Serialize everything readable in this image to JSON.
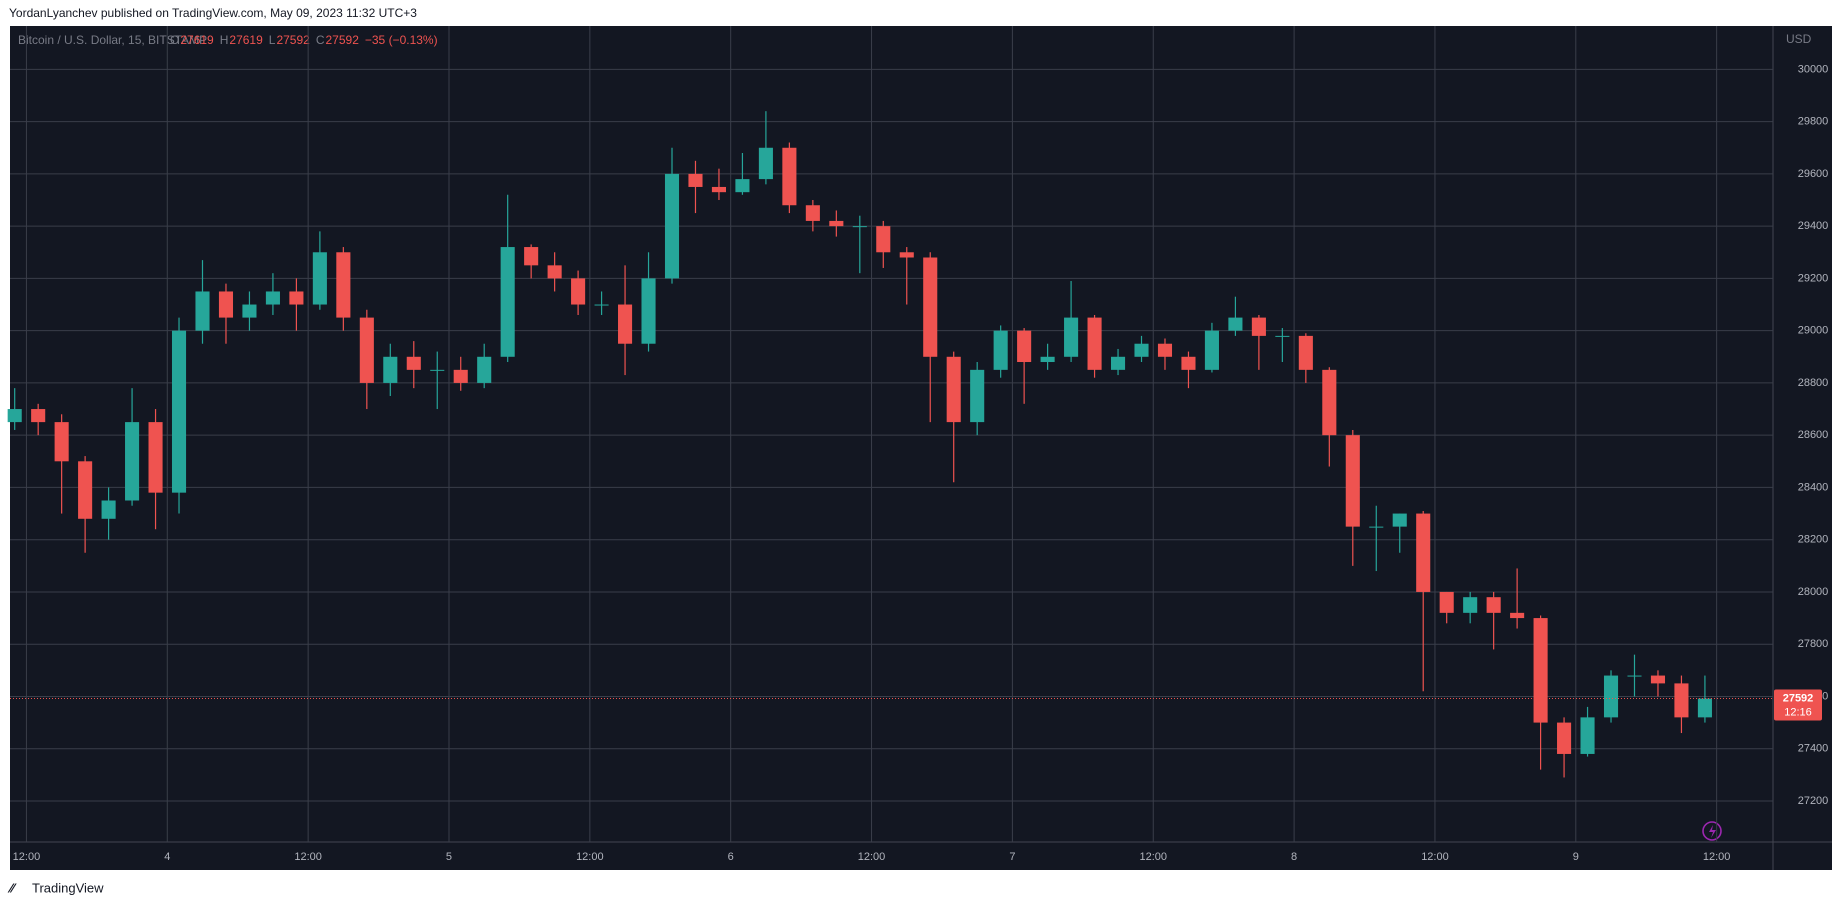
{
  "chart_data": {
    "type": "candlestick",
    "published": "YordanLyanchev published on TradingView.com, May 09, 2023 11:32 UTC+3",
    "symbol": "Bitcoin / U.S. Dollar, 15, BITSTAMP",
    "legend": [
      {
        "label": "O",
        "value": "27619"
      },
      {
        "label": "H",
        "value": "27619"
      },
      {
        "label": "L",
        "value": "27592"
      },
      {
        "label": "C",
        "value": "27592"
      }
    ],
    "change": "−35 (−0.13%)",
    "currency": "USD",
    "brand": "TradingView",
    "up_color": "#26a69a",
    "down_color": "#ef5350",
    "grid": true,
    "x": [
      11,
      13,
      15,
      17,
      19,
      21,
      23,
      25,
      27,
      29,
      31,
      33,
      35,
      37,
      39,
      41,
      43,
      45,
      47,
      49,
      51,
      53,
      55,
      57,
      59,
      61,
      63,
      65,
      67,
      69,
      71,
      73,
      75,
      77,
      79,
      81,
      83,
      85,
      87,
      89,
      91,
      93,
      95,
      97,
      99,
      101,
      103,
      105,
      107,
      109,
      111,
      113,
      115,
      117,
      119,
      121,
      123,
      125,
      127,
      129,
      131,
      133,
      135,
      137,
      139,
      141,
      143,
      145,
      147,
      149,
      151,
      153,
      155
    ],
    "open": [
      28650,
      28700,
      28650,
      28500,
      28280,
      28350,
      28650,
      28380,
      29000,
      29150,
      29050,
      29100,
      29150,
      29100,
      29300,
      29050,
      28800,
      28900,
      28850,
      28850,
      28800,
      28900,
      29320,
      29250,
      29200,
      29100,
      29100,
      28950,
      29200,
      29600,
      29550,
      29530,
      29580,
      29700,
      29480,
      29420,
      29400,
      29400,
      29300,
      29280,
      28900,
      28650,
      28850,
      29000,
      28880,
      28900,
      29050,
      28850,
      28900,
      28950,
      28900,
      28850,
      29000,
      29050,
      28980,
      28980,
      28850,
      28600,
      28250,
      28250,
      28300,
      28000,
      27920,
      27980,
      27920,
      27900,
      27500,
      27380,
      27520,
      27680,
      27680,
      27650,
      27520
    ],
    "high": [
      28780,
      28720,
      28680,
      28520,
      28400,
      28780,
      28700,
      29050,
      29270,
      29180,
      29150,
      29220,
      29200,
      29380,
      29320,
      29080,
      28950,
      28960,
      28920,
      28900,
      28950,
      29520,
      29330,
      29300,
      29230,
      29150,
      29250,
      29300,
      29700,
      29650,
      29620,
      29680,
      29840,
      29720,
      29500,
      29460,
      29440,
      29420,
      29320,
      29300,
      28920,
      28880,
      29020,
      29010,
      28950,
      29190,
      29060,
      28930,
      28980,
      28970,
      28920,
      29030,
      29130,
      29060,
      29010,
      28990,
      28860,
      28620,
      28330,
      28300,
      28310,
      28000,
      28000,
      28000,
      28090,
      27910,
      27520,
      27560,
      27700,
      27760,
      27700,
      27680,
      27680
    ],
    "low": [
      28620,
      28600,
      28300,
      28150,
      28200,
      28330,
      28240,
      28300,
      28950,
      28950,
      29000,
      29060,
      29000,
      29080,
      29000,
      28700,
      28750,
      28780,
      28700,
      28770,
      28780,
      28880,
      29200,
      29150,
      29060,
      29060,
      28830,
      28920,
      29180,
      29450,
      29500,
      29520,
      29560,
      29450,
      29380,
      29360,
      29220,
      29240,
      29100,
      28650,
      28420,
      28600,
      28820,
      28720,
      28850,
      28880,
      28820,
      28830,
      28880,
      28850,
      28780,
      28840,
      28980,
      28850,
      28880,
      28800,
      28480,
      28100,
      28080,
      28150,
      27620,
      27880,
      27880,
      27780,
      27860,
      27320,
      27290,
      27370,
      27500,
      27600,
      27600,
      27460,
      27500
    ],
    "close": [
      28700,
      28650,
      28500,
      28280,
      28350,
      28650,
      28380,
      29000,
      29150,
      29050,
      29100,
      29150,
      29100,
      29300,
      29050,
      28800,
      28900,
      28850,
      28850,
      28800,
      28900,
      29320,
      29250,
      29200,
      29100,
      29100,
      28950,
      29200,
      29600,
      29550,
      29530,
      29580,
      29700,
      29480,
      29420,
      29400,
      29400,
      29300,
      29280,
      28900,
      28650,
      28850,
      29000,
      28880,
      28900,
      29050,
      28850,
      28900,
      28950,
      28900,
      28850,
      29000,
      29050,
      28980,
      28980,
      28850,
      28600,
      28250,
      28250,
      28300,
      28000,
      27920,
      27980,
      27920,
      27900,
      27500,
      27380,
      27520,
      27680,
      27680,
      27650,
      27520,
      27592
    ],
    "last_price": 27592,
    "countdown": "12:16",
    "xlim": [
      10.6,
      160.8
    ],
    "xticks": [
      {
        "value": 12,
        "label": "12:00"
      },
      {
        "value": 24,
        "label": "4"
      },
      {
        "value": 36,
        "label": "12:00"
      },
      {
        "value": 48,
        "label": "5"
      },
      {
        "value": 60,
        "label": "12:00"
      },
      {
        "value": 72,
        "label": "6"
      },
      {
        "value": 84,
        "label": "12:00"
      },
      {
        "value": 96,
        "label": "7"
      },
      {
        "value": 108,
        "label": "12:00"
      },
      {
        "value": 120,
        "label": "8"
      },
      {
        "value": 132,
        "label": "12:00"
      },
      {
        "value": 144,
        "label": "9"
      },
      {
        "value": 156,
        "label": "12:00"
      }
    ],
    "ylim": [
      27043,
      30166
    ],
    "yticks": [
      27200,
      27400,
      27600,
      27800,
      28000,
      28200,
      28400,
      28600,
      28800,
      29000,
      29200,
      29400,
      29600,
      29800,
      30000
    ]
  }
}
